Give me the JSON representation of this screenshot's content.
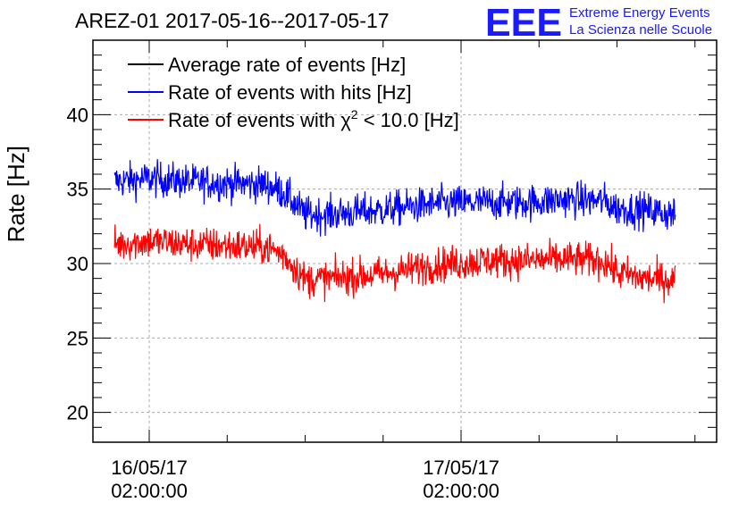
{
  "logo": {
    "mark": "EEE",
    "line1": "Extreme Energy Events",
    "line2": "La Scienza nelle Scuole"
  },
  "chart_data": {
    "type": "line",
    "title": "AREZ-01 2017-05-16--2017-05-17",
    "ylabel": "Rate [Hz]",
    "xlabel": "",
    "ylim": [
      18,
      45
    ],
    "yticks": [
      20,
      25,
      30,
      35,
      40
    ],
    "xlim": [
      "2017-05-15 21:40",
      "2017-05-17 21:40"
    ],
    "xticks": [
      {
        "datetime": "2017-05-16 02:00",
        "label_line1": "16/05/17",
        "label_line2": "02:00:00"
      },
      {
        "datetime": "2017-05-17 02:00",
        "label_line1": "17/05/17",
        "label_line2": "02:00:00"
      }
    ],
    "grid": true,
    "legend_position": "top-left",
    "series": [
      {
        "name": "Average rate of events [Hz]",
        "color": "#000000",
        "x": [],
        "y": []
      },
      {
        "name": "Rate of events with hits [Hz]",
        "color": "#0000ff",
        "x": [
          "2017-05-15 23:20",
          "2017-05-16 02:00",
          "2017-05-16 05:00",
          "2017-05-16 08:00",
          "2017-05-16 11:00",
          "2017-05-16 12:20",
          "2017-05-16 14:00",
          "2017-05-16 16:00",
          "2017-05-16 20:00",
          "2017-05-17 00:00",
          "2017-05-17 04:00",
          "2017-05-17 07:00",
          "2017-05-17 10:00",
          "2017-05-17 13:00",
          "2017-05-17 14:00",
          "2017-05-17 16:00",
          "2017-05-17 18:30"
        ],
        "y": [
          35.5,
          35.7,
          35.5,
          35.4,
          35.3,
          34.8,
          33.3,
          33.3,
          33.6,
          34.0,
          34.1,
          34.1,
          34.3,
          34.2,
          33.7,
          33.6,
          33.3
        ]
      },
      {
        "name": "Rate of events with χ² < 10.0 [Hz]",
        "legend_prefix": "Rate of events with ",
        "legend_chi": "χ",
        "legend_sup": "2",
        "legend_suffix": " < 10.0 [Hz]",
        "color": "#ff0000",
        "x": [
          "2017-05-15 23:20",
          "2017-05-16 02:00",
          "2017-05-16 05:00",
          "2017-05-16 08:00",
          "2017-05-16 11:00",
          "2017-05-16 12:20",
          "2017-05-16 14:00",
          "2017-05-16 16:00",
          "2017-05-16 20:00",
          "2017-05-17 00:00",
          "2017-05-17 04:00",
          "2017-05-17 07:00",
          "2017-05-17 10:00",
          "2017-05-17 13:00",
          "2017-05-17 14:00",
          "2017-05-17 16:00",
          "2017-05-17 18:30"
        ],
        "y": [
          31.3,
          31.5,
          31.3,
          31.2,
          31.1,
          30.6,
          28.9,
          29.0,
          29.3,
          29.9,
          30.2,
          30.2,
          30.3,
          30.2,
          29.4,
          29.0,
          28.9
        ]
      }
    ]
  }
}
